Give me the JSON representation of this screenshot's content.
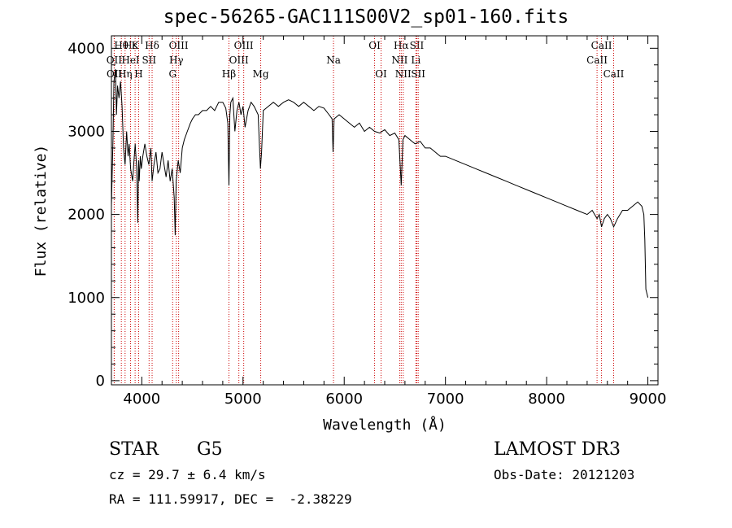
{
  "chart_data": {
    "type": "line",
    "title": "spec-56265-GAC111S00V2_sp01-160.fits",
    "xlabel": "Wavelength (Å)",
    "ylabel": "Flux (relative)",
    "xlim": [
      3700,
      9100
    ],
    "ylim": [
      -50,
      4150
    ],
    "xticks": [
      4000,
      5000,
      6000,
      7000,
      8000,
      9000
    ],
    "yticks": [
      0,
      1000,
      2000,
      3000,
      4000
    ],
    "series": [
      {
        "name": "spectrum",
        "x": [
          3700,
          3715,
          3725,
          3740,
          3750,
          3760,
          3775,
          3790,
          3805,
          3820,
          3835,
          3850,
          3865,
          3875,
          3890,
          3910,
          3920,
          3935,
          3950,
          3960,
          3968,
          3975,
          3985,
          3995,
          4010,
          4030,
          4050,
          4070,
          4090,
          4102,
          4120,
          4140,
          4160,
          4180,
          4200,
          4220,
          4240,
          4260,
          4280,
          4300,
          4320,
          4330,
          4340,
          4360,
          4380,
          4400,
          4420,
          4450,
          4480,
          4500,
          4530,
          4560,
          4600,
          4640,
          4680,
          4720,
          4760,
          4800,
          4830,
          4850,
          4861,
          4870,
          4880,
          4900,
          4920,
          4940,
          4960,
          4980,
          5000,
          5020,
          5050,
          5080,
          5110,
          5150,
          5172,
          5183,
          5200,
          5250,
          5300,
          5350,
          5400,
          5450,
          5500,
          5550,
          5600,
          5650,
          5700,
          5750,
          5800,
          5850,
          5880,
          5890,
          5900,
          5950,
          6000,
          6050,
          6100,
          6150,
          6200,
          6250,
          6300,
          6350,
          6400,
          6450,
          6500,
          6540,
          6563,
          6580,
          6600,
          6650,
          6700,
          6750,
          6800,
          6850,
          6900,
          6950,
          7000,
          7100,
          7200,
          7300,
          7400,
          7500,
          7600,
          7700,
          7800,
          7900,
          8000,
          8100,
          8200,
          8300,
          8400,
          8450,
          8498,
          8520,
          8542,
          8570,
          8600,
          8630,
          8662,
          8700,
          8750,
          8800,
          8850,
          8900,
          8940,
          8960,
          8970,
          8980,
          9000
        ],
        "values": [
          2100,
          2900,
          3600,
          3750,
          3200,
          3550,
          3400,
          3600,
          3300,
          2800,
          2600,
          3000,
          2700,
          2850,
          2550,
          2400,
          2600,
          2850,
          2550,
          1900,
          2650,
          2400,
          2700,
          2550,
          2700,
          2850,
          2700,
          2600,
          2800,
          2400,
          2600,
          2750,
          2500,
          2550,
          2750,
          2600,
          2450,
          2650,
          2400,
          2550,
          2200,
          1750,
          2400,
          2650,
          2500,
          2800,
          2900,
          3000,
          3100,
          3150,
          3200,
          3200,
          3250,
          3250,
          3300,
          3250,
          3350,
          3350,
          3280,
          3100,
          2350,
          3200,
          3350,
          3400,
          3000,
          3250,
          3350,
          3200,
          3300,
          3050,
          3250,
          3350,
          3300,
          3200,
          2550,
          2750,
          3250,
          3300,
          3350,
          3300,
          3350,
          3380,
          3350,
          3300,
          3350,
          3300,
          3250,
          3300,
          3280,
          3200,
          3150,
          2750,
          3150,
          3200,
          3150,
          3100,
          3050,
          3100,
          3000,
          3050,
          3000,
          2980,
          3020,
          2950,
          2980,
          2900,
          2350,
          2900,
          2950,
          2900,
          2850,
          2880,
          2800,
          2800,
          2750,
          2700,
          2700,
          2650,
          2600,
          2550,
          2500,
          2450,
          2400,
          2350,
          2300,
          2250,
          2200,
          2150,
          2100,
          2050,
          2000,
          2050,
          1950,
          2000,
          1850,
          1950,
          2000,
          1950,
          1850,
          1950,
          2050,
          2050,
          2100,
          2150,
          2100,
          2000,
          1700,
          1100,
          1000
        ]
      }
    ],
    "line_markers": [
      {
        "label": "Hθ",
        "x": 3798,
        "row": 0
      },
      {
        "label": "OII",
        "x": 3727,
        "row": 1
      },
      {
        "label": "OII",
        "x": 3729,
        "row": 2
      },
      {
        "label": "Hε",
        "x": 3889,
        "row": 0
      },
      {
        "label": "HeI",
        "x": 3889,
        "row": 1
      },
      {
        "label": "Hη",
        "x": 3835,
        "row": 2
      },
      {
        "label": "K",
        "x": 3934,
        "row": 0
      },
      {
        "label": "SII",
        "x": 4072,
        "row": 1
      },
      {
        "label": "H",
        "x": 3969,
        "row": 2
      },
      {
        "label": "Hδ",
        "x": 4102,
        "row": 0
      },
      {
        "label": "OIII",
        "x": 4364,
        "row": 0
      },
      {
        "label": "Hγ",
        "x": 4341,
        "row": 1
      },
      {
        "label": "G",
        "x": 4305,
        "row": 2
      },
      {
        "label": "Hβ",
        "x": 4861,
        "row": 2
      },
      {
        "label": "OIII",
        "x": 5007,
        "row": 0
      },
      {
        "label": "OIII",
        "x": 4959,
        "row": 1
      },
      {
        "label": "Mg",
        "x": 5175,
        "row": 2
      },
      {
        "label": "Na",
        "x": 5894,
        "row": 1
      },
      {
        "label": "OI",
        "x": 6300,
        "row": 0
      },
      {
        "label": "OI",
        "x": 6364,
        "row": 2
      },
      {
        "label": "Hα",
        "x": 6563,
        "row": 0
      },
      {
        "label": "SII",
        "x": 6717,
        "row": 0
      },
      {
        "label": "NII",
        "x": 6548,
        "row": 1
      },
      {
        "label": "Li",
        "x": 6708,
        "row": 1
      },
      {
        "label": "NII",
        "x": 6583,
        "row": 2
      },
      {
        "label": "SII",
        "x": 6731,
        "row": 2
      },
      {
        "label": "CaII",
        "x": 8542,
        "row": 0
      },
      {
        "label": "CaII",
        "x": 8498,
        "row": 1
      },
      {
        "label": "CaII",
        "x": 8662,
        "row": 2
      }
    ],
    "colors": {
      "spectrum": "#000000",
      "marker": "#cc0000"
    }
  },
  "info": {
    "class": "STAR",
    "subclass": "G5",
    "cz": "cz = 29.7 ± 6.4 km/s",
    "radec": "RA = 111.59917, DEC =  -2.38229",
    "survey": "LAMOST DR3",
    "obsdate": "Obs-Date: 20121203"
  }
}
